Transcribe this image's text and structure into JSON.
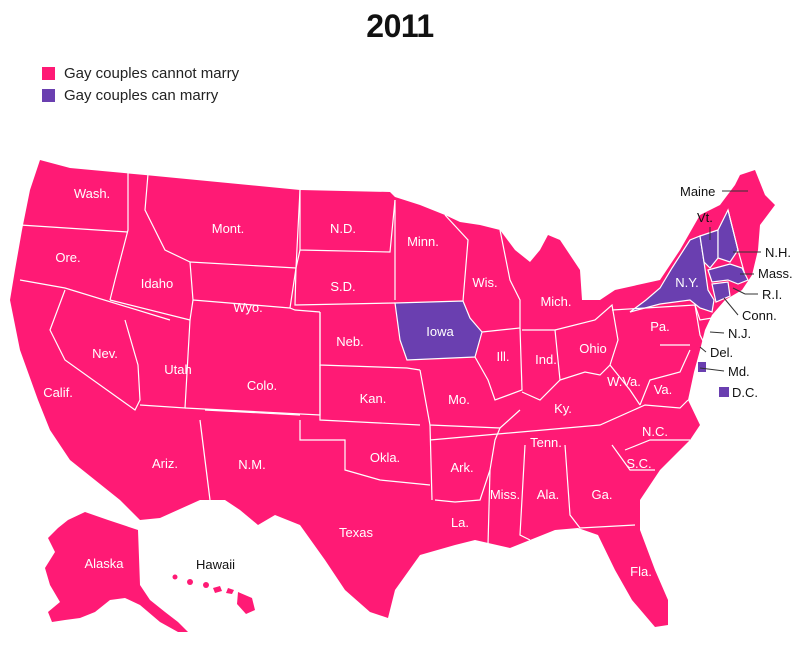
{
  "title": "2011",
  "colors": {
    "cannot": "#ff1a75",
    "can": "#6a3fb0"
  },
  "legend": [
    {
      "label": "Gay couples cannot marry",
      "color": "#ff1a75"
    },
    {
      "label": "Gay couples can marry",
      "color": "#6a3fb0"
    }
  ],
  "states": {
    "wash": "Wash.",
    "ore": "Ore.",
    "calif": "Calif.",
    "idaho": "Idaho",
    "nev": "Nev.",
    "mont": "Mont.",
    "wyo": "Wyo.",
    "utah": "Utah",
    "ariz": "Ariz.",
    "colo": "Colo.",
    "nm": "N.M.",
    "nd": "N.D.",
    "sd": "S.D.",
    "neb": "Neb.",
    "kan": "Kan.",
    "okla": "Okla.",
    "texas": "Texas",
    "minn": "Minn.",
    "iowa": "Iowa",
    "mo": "Mo.",
    "ark": "Ark.",
    "la": "La.",
    "wis": "Wis.",
    "ill": "Ill.",
    "mich": "Mich.",
    "ind": "Ind.",
    "ohio": "Ohio",
    "ky": "Ky.",
    "tenn": "Tenn.",
    "miss": "Miss.",
    "ala": "Ala.",
    "ga": "Ga.",
    "fla": "Fla.",
    "sc": "S.C.",
    "nc": "N.C.",
    "va": "Va.",
    "wva": "W.Va.",
    "pa": "Pa.",
    "ny": "N.Y.",
    "vt": "Vt.",
    "nh": "N.H.",
    "maine": "Maine",
    "mass": "Mass.",
    "ri": "R.I.",
    "conn": "Conn.",
    "nj": "N.J.",
    "del": "Del.",
    "md": "Md.",
    "dc": "D.C.",
    "alaska": "Alaska",
    "hawaii": "Hawaii"
  },
  "can_marry": [
    "Iowa",
    "N.Y.",
    "Vt.",
    "N.H.",
    "Mass.",
    "Conn.",
    "D.C."
  ]
}
